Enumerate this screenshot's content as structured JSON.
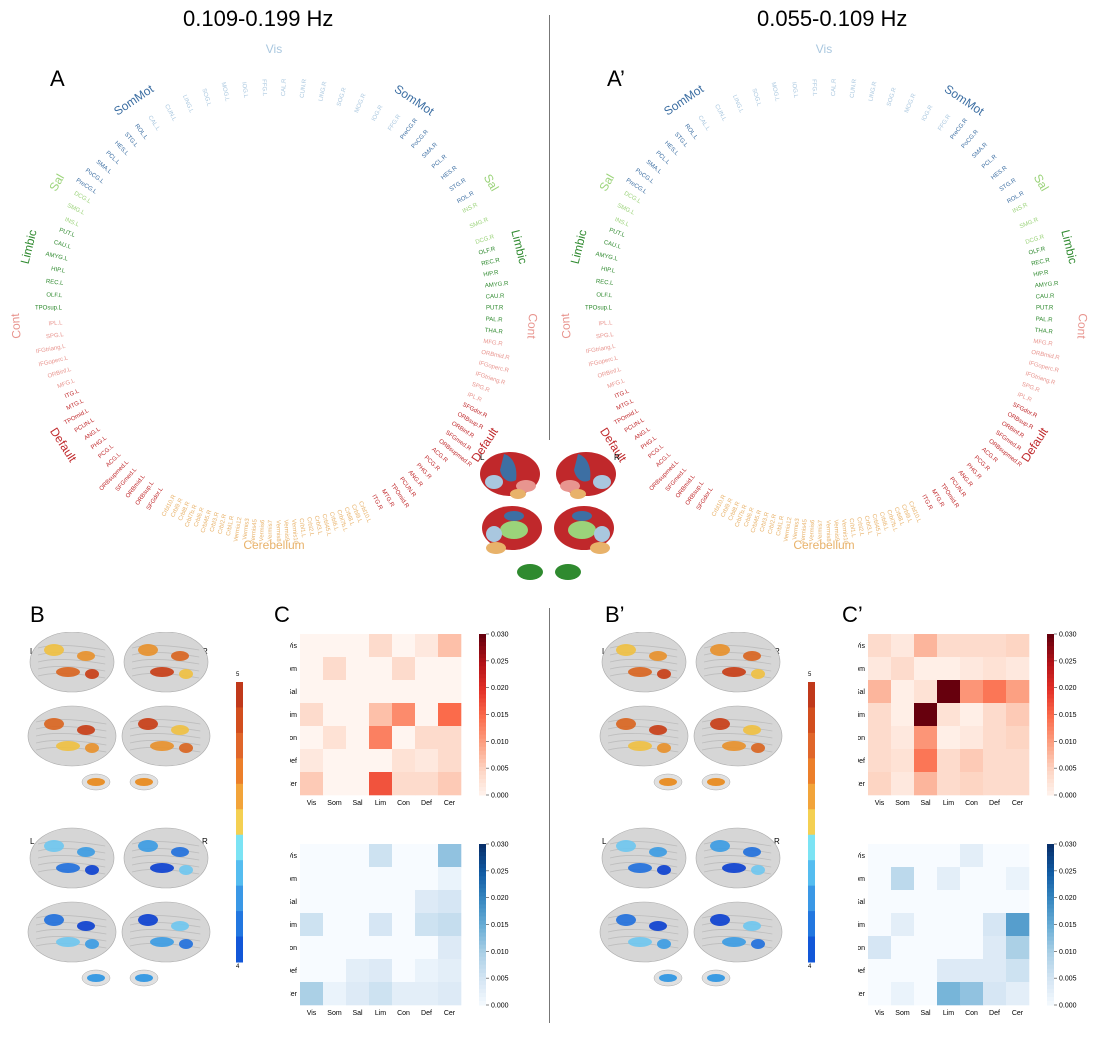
{
  "titles": {
    "left": "0.109-0.199 Hz",
    "right": "0.055-0.109 Hz"
  },
  "panel_labels": {
    "A": "A",
    "A2": "A’",
    "B": "B",
    "B2": "B’",
    "C": "C",
    "C2": "C’"
  },
  "hemisphere_labels": {
    "left": "L",
    "right": "R"
  },
  "networks": [
    {
      "name": "Vis",
      "color": "#a9c7df"
    },
    {
      "name": "SomMot",
      "color": "#3d6fa3"
    },
    {
      "name": "Sal",
      "color": "#9bd37a"
    },
    {
      "name": "Limbic",
      "color": "#2f8a2f"
    },
    {
      "name": "Cont",
      "color": "#e8958f"
    },
    {
      "name": "Default",
      "color": "#c0282b"
    },
    {
      "name": "Cerebellum",
      "color": "#e8b26a"
    }
  ],
  "ring_nodes": {
    "vis": [
      "CAL.L",
      "CUN.L",
      "LING.L",
      "SOG.L",
      "MOG.L",
      "IOG.L",
      "FFG.L",
      "CAL.R",
      "CUN.R",
      "LING.R",
      "SOG.R",
      "MOG.R",
      "IOG.R",
      "FFG.R"
    ],
    "sommot_left": [
      "PreCG.L",
      "PoCG.L",
      "SMA.L",
      "PCL.L",
      "HES.L",
      "STG.L",
      "ROL.L"
    ],
    "sommot_right": [
      "PreCG.R",
      "PoCG.R",
      "SMA.R",
      "PCL.R",
      "HES.R",
      "STG.R",
      "ROL.R"
    ],
    "sal_left": [
      "INS.L",
      "SMG.L",
      "DCG.L"
    ],
    "sal_right": [
      "INS.R",
      "SMG.R",
      "DCG.R"
    ],
    "limbic_left": [
      "TPOsup.L",
      "OLF.L",
      "REC.L",
      "HIP.L",
      "AMYG.L",
      "CAU.L",
      "PUT.L"
    ],
    "limbic_right": [
      "OLF.R",
      "REC.R",
      "HIP.R",
      "AMYG.R",
      "CAU.R",
      "PUT.R",
      "PAL.R",
      "THA.R"
    ],
    "cont_left": [
      "MFG.L",
      "ORBinf.L",
      "IFGoperc.L",
      "IFGtriang.L",
      "SPG.L",
      "IPL.L"
    ],
    "cont_right": [
      "MFG.R",
      "ORBmid.R",
      "IFGoperc.R",
      "IFGtriang.R",
      "SPG.R",
      "IPL.R"
    ],
    "default_left": [
      "SFGdor.L",
      "ORBsup.L",
      "ORBmid.L",
      "SFGmed.L",
      "ORBsupmed.L",
      "ACG.L",
      "PCG.L",
      "PHG.L",
      "ANG.L",
      "PCUN.L",
      "TPOmid.L",
      "MTG.L",
      "ITG.L"
    ],
    "default_right": [
      "SFGdor.R",
      "ORBsup.R",
      "ORBinf.R",
      "SFGmed.R",
      "ORBsupmed.R",
      "ACG.R",
      "PCG.R",
      "PHG.R",
      "ANG.R",
      "PCUN.R",
      "TPOmid.R",
      "MTG.R",
      "ITG.R"
    ],
    "cerebellum": [
      "Crbl10.L",
      "Crbl9.L",
      "Crbl8.L",
      "Crbl7b.L",
      "Crbl6.L",
      "Crbl45.L",
      "Crbl3.L",
      "Crbl2.L",
      "Crbl1.L",
      "Vermis10",
      "Vermis9",
      "Vermis8",
      "Vermis7",
      "Vermis6",
      "Vermis45",
      "Vermis3",
      "Vermis12",
      "Crbl1.R",
      "Crbl2.R",
      "Crbl3.R",
      "Crbl45.R",
      "Crbl6.R",
      "Crbl7b.R",
      "Crbl8.R",
      "Crbl9.R",
      "Crbl10.R"
    ]
  },
  "colorbar_brain": {
    "max_label": "5",
    "min_label": "4"
  },
  "matrix_axis": [
    "Vis",
    "Som",
    "Sal",
    "Lim",
    "Con",
    "Def",
    "Cer"
  ],
  "colorbar_ticks": [
    "0.030",
    "0.025",
    "0.020",
    "0.015",
    "0.010",
    "0.005",
    "0.000"
  ],
  "colors": {
    "red_max": "#67000d",
    "blue_max": "#08306b"
  },
  "chart_data": [
    {
      "type": "heatmap",
      "panel": "C",
      "colormap": "Reds",
      "vmin": 0,
      "vmax": 0.03,
      "rows": [
        "Vis",
        "Som",
        "Sal",
        "Lim",
        "Con",
        "Def",
        "Cer"
      ],
      "cols": [
        "Vis",
        "Som",
        "Sal",
        "Lim",
        "Con",
        "Def",
        "Cer"
      ],
      "values": [
        [
          0,
          0,
          0,
          0.004,
          0,
          0.002,
          0.007
        ],
        [
          0,
          0.004,
          0,
          0,
          0.004,
          0,
          0
        ],
        [
          0,
          0,
          0,
          0,
          0,
          0,
          0
        ],
        [
          0.004,
          0,
          0,
          0.007,
          0.012,
          0,
          0.015
        ],
        [
          0,
          0.003,
          0,
          0.013,
          0,
          0.004,
          0.004
        ],
        [
          0.002,
          0,
          0,
          0,
          0.003,
          0.002,
          0.004
        ],
        [
          0.006,
          0,
          0,
          0.017,
          0.004,
          0.004,
          0.006
        ]
      ]
    },
    {
      "type": "heatmap",
      "panel": "C-negative",
      "colormap": "Blues",
      "vmin": 0,
      "vmax": 0.03,
      "rows": [
        "Vis",
        "Som",
        "Sal",
        "Lim",
        "Con",
        "Def",
        "Cer"
      ],
      "cols": [
        "Vis",
        "Som",
        "Sal",
        "Lim",
        "Con",
        "Def",
        "Cer"
      ],
      "values": [
        [
          0,
          0,
          0,
          0.006,
          0,
          0,
          0.012
        ],
        [
          0,
          0,
          0,
          0,
          0,
          0,
          0.002
        ],
        [
          0,
          0,
          0,
          0,
          0,
          0.004,
          0.005
        ],
        [
          0.006,
          0,
          0,
          0.005,
          0,
          0.006,
          0.007
        ],
        [
          0,
          0,
          0,
          0,
          0,
          0,
          0.004
        ],
        [
          0,
          0,
          0.003,
          0.004,
          0,
          0.002,
          0.003
        ],
        [
          0.01,
          0.002,
          0.004,
          0.006,
          0.003,
          0.003,
          0.004
        ]
      ]
    },
    {
      "type": "heatmap",
      "panel": "C’",
      "colormap": "Reds",
      "vmin": 0,
      "vmax": 0.03,
      "rows": [
        "Vis",
        "Som",
        "Sal",
        "Lim",
        "Con",
        "Def",
        "Cer"
      ],
      "cols": [
        "Vis",
        "Som",
        "Sal",
        "Lim",
        "Con",
        "Def",
        "Cer"
      ],
      "values": [
        [
          0.004,
          0.002,
          0.008,
          0.004,
          0.004,
          0.004,
          0.005
        ],
        [
          0.002,
          0.004,
          0.001,
          0.001,
          0.002,
          0.003,
          0.002
        ],
        [
          0.008,
          0.001,
          0.003,
          0.03,
          0.011,
          0.014,
          0.01
        ],
        [
          0.004,
          0.001,
          0.03,
          0.003,
          0.001,
          0.004,
          0.006
        ],
        [
          0.004,
          0.002,
          0.011,
          0.001,
          0.002,
          0.004,
          0.005
        ],
        [
          0.004,
          0.003,
          0.014,
          0.004,
          0.006,
          0.004,
          0.004
        ],
        [
          0.005,
          0.002,
          0.008,
          0.004,
          0.005,
          0.004,
          0.004
        ]
      ]
    },
    {
      "type": "heatmap",
      "panel": "C’-negative",
      "colormap": "Blues",
      "vmin": 0,
      "vmax": 0.03,
      "rows": [
        "Vis",
        "Som",
        "Sal",
        "Lim",
        "Con",
        "Def",
        "Cer"
      ],
      "cols": [
        "Vis",
        "Som",
        "Sal",
        "Lim",
        "Con",
        "Def",
        "Cer"
      ],
      "values": [
        [
          0,
          0,
          0,
          0,
          0.003,
          0,
          0
        ],
        [
          0,
          0.008,
          0,
          0.003,
          0,
          0,
          0.002
        ],
        [
          0,
          0,
          0,
          0,
          0,
          0,
          0
        ],
        [
          0,
          0.003,
          0,
          0,
          0,
          0.005,
          0.017
        ],
        [
          0.005,
          0,
          0,
          0,
          0,
          0.004,
          0.01
        ],
        [
          0,
          0,
          0,
          0.004,
          0.004,
          0.004,
          0.006
        ],
        [
          0,
          0.002,
          0,
          0.014,
          0.012,
          0.005,
          0.003
        ]
      ]
    }
  ]
}
